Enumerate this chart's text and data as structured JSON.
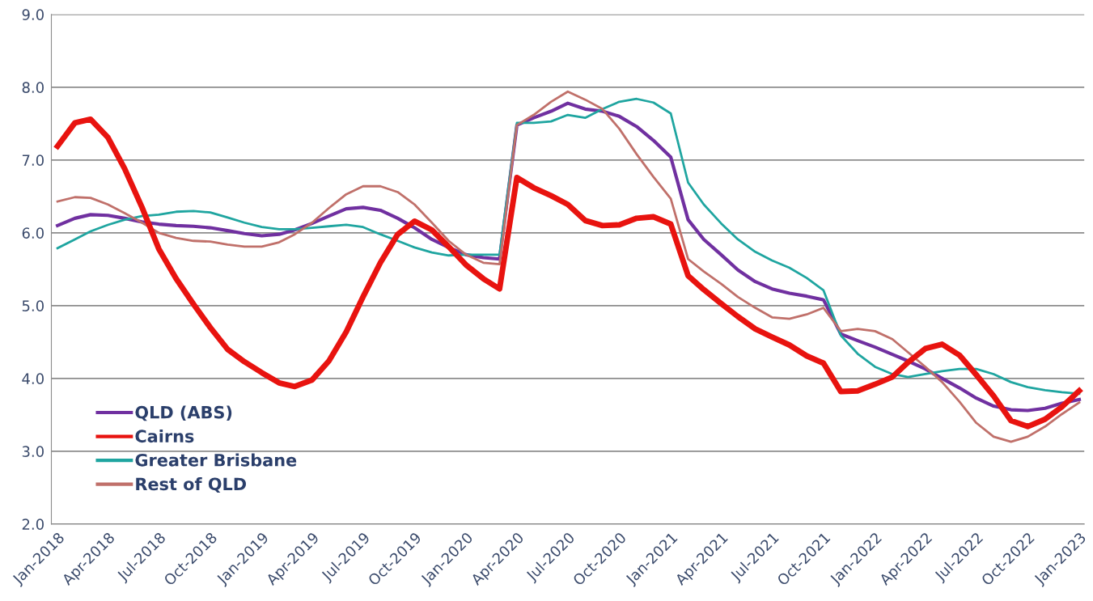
{
  "chart_data": {
    "type": "line",
    "x": [
      "2018-01",
      "2018-02",
      "2018-03",
      "2018-04",
      "2018-05",
      "2018-06",
      "2018-07",
      "2018-08",
      "2018-09",
      "2018-10",
      "2018-11",
      "2018-12",
      "2019-01",
      "2019-02",
      "2019-03",
      "2019-04",
      "2019-05",
      "2019-06",
      "2019-07",
      "2019-08",
      "2019-09",
      "2019-10",
      "2019-11",
      "2019-12",
      "2020-01",
      "2020-02",
      "2020-03",
      "2020-04",
      "2020-05",
      "2020-06",
      "2020-07",
      "2020-08",
      "2020-09",
      "2020-10",
      "2020-11",
      "2020-12",
      "2021-01",
      "2021-02",
      "2021-03",
      "2021-04",
      "2021-05",
      "2021-06",
      "2021-07",
      "2021-08",
      "2021-09",
      "2021-10",
      "2021-11",
      "2021-12",
      "2022-01",
      "2022-02",
      "2022-03",
      "2022-04",
      "2022-05",
      "2022-06",
      "2022-07",
      "2022-08",
      "2022-09",
      "2022-10",
      "2022-11",
      "2022-12",
      "2023-01"
    ],
    "series": [
      {
        "name": "QLD (ABS)",
        "color": "#7030a0",
        "values": [
          6.1,
          6.2,
          6.25,
          6.24,
          6.2,
          6.15,
          6.12,
          6.1,
          6.09,
          6.07,
          6.03,
          5.99,
          5.96,
          5.98,
          6.04,
          6.13,
          6.23,
          6.33,
          6.35,
          6.31,
          6.2,
          6.07,
          5.91,
          5.8,
          5.7,
          5.66,
          5.64,
          7.48,
          7.58,
          7.67,
          7.78,
          7.7,
          7.67,
          7.6,
          7.46,
          7.27,
          7.04,
          6.18,
          5.91,
          5.7,
          5.49,
          5.33,
          5.23,
          5.17,
          5.13,
          5.08,
          4.61,
          4.52,
          4.43,
          4.33,
          4.24,
          4.13,
          4.0,
          3.87,
          3.73,
          3.62,
          3.57,
          3.56,
          3.59,
          3.66,
          3.71
        ]
      },
      {
        "name": "Cairns",
        "color": "#e8130f",
        "values": [
          7.19,
          7.51,
          7.56,
          7.31,
          6.88,
          6.35,
          5.78,
          5.37,
          5.02,
          4.7,
          4.4,
          4.23,
          4.08,
          3.94,
          3.89,
          3.98,
          4.24,
          4.64,
          5.12,
          5.59,
          5.98,
          6.16,
          6.04,
          5.81,
          5.56,
          5.37,
          5.23,
          6.76,
          6.62,
          6.51,
          6.39,
          6.17,
          6.1,
          6.11,
          6.2,
          6.22,
          6.12,
          5.41,
          5.22,
          5.03,
          4.85,
          4.68,
          4.57,
          4.46,
          4.31,
          4.21,
          3.82,
          3.83,
          3.92,
          4.02,
          4.22,
          4.41,
          4.47,
          4.32,
          4.05,
          3.76,
          3.42,
          3.34,
          3.44,
          3.61,
          3.83
        ]
      },
      {
        "name": "Greater Brisbane",
        "color": "#1fa5a0",
        "values": [
          5.79,
          5.91,
          6.02,
          6.11,
          6.18,
          6.23,
          6.25,
          6.29,
          6.3,
          6.28,
          6.21,
          6.14,
          6.08,
          6.05,
          6.05,
          6.07,
          6.09,
          6.11,
          6.08,
          5.98,
          5.89,
          5.8,
          5.73,
          5.69,
          5.7,
          5.7,
          5.7,
          7.51,
          7.51,
          7.53,
          7.62,
          7.58,
          7.7,
          7.8,
          7.84,
          7.79,
          7.64,
          6.69,
          6.39,
          6.13,
          5.91,
          5.74,
          5.62,
          5.52,
          5.38,
          5.21,
          4.59,
          4.34,
          4.16,
          4.06,
          4.02,
          4.06,
          4.1,
          4.13,
          4.13,
          4.06,
          3.95,
          3.88,
          3.84,
          3.81,
          3.79
        ]
      },
      {
        "name": "Rest of QLD",
        "color": "#c0706a",
        "values": [
          6.43,
          6.49,
          6.48,
          6.39,
          6.27,
          6.14,
          6.0,
          5.93,
          5.89,
          5.88,
          5.84,
          5.81,
          5.81,
          5.87,
          5.98,
          6.14,
          6.34,
          6.53,
          6.64,
          6.64,
          6.56,
          6.39,
          6.14,
          5.89,
          5.7,
          5.59,
          5.57,
          7.48,
          7.62,
          7.8,
          7.94,
          7.83,
          7.7,
          7.43,
          7.08,
          6.77,
          6.47,
          5.64,
          5.47,
          5.3,
          5.12,
          4.97,
          4.84,
          4.82,
          4.88,
          4.97,
          4.65,
          4.68,
          4.65,
          4.54,
          4.36,
          4.16,
          3.95,
          3.68,
          3.39,
          3.2,
          3.13,
          3.2,
          3.34,
          3.51,
          3.67
        ]
      }
    ],
    "xlim": [
      "2017-12-21",
      "2023-01-10"
    ],
    "xticks": [
      {
        "value": "2018-01",
        "label": "Jan-2018"
      },
      {
        "value": "2018-04",
        "label": "Apr-2018"
      },
      {
        "value": "2018-07",
        "label": "Jul-2018"
      },
      {
        "value": "2018-10",
        "label": "Oct-2018"
      },
      {
        "value": "2019-01",
        "label": "Jan-2019"
      },
      {
        "value": "2019-04",
        "label": "Apr-2019"
      },
      {
        "value": "2019-07",
        "label": "Jul-2019"
      },
      {
        "value": "2019-10",
        "label": "Oct-2019"
      },
      {
        "value": "2020-01",
        "label": "Jan-2020"
      },
      {
        "value": "2020-04",
        "label": "Apr-2020"
      },
      {
        "value": "2020-07",
        "label": "Jul-2020"
      },
      {
        "value": "2020-10",
        "label": "Oct-2020"
      },
      {
        "value": "2021-01",
        "label": "Jan-2021"
      },
      {
        "value": "2021-04",
        "label": "Apr-2021"
      },
      {
        "value": "2021-07",
        "label": "Jul-2021"
      },
      {
        "value": "2021-10",
        "label": "Oct-2021"
      },
      {
        "value": "2022-01",
        "label": "Jan-2022"
      },
      {
        "value": "2022-04",
        "label": "Apr-2022"
      },
      {
        "value": "2022-07",
        "label": "Jul-2022"
      },
      {
        "value": "2022-10",
        "label": "Oct-2022"
      },
      {
        "value": "2023-01",
        "label": "Jan-2023"
      }
    ],
    "ylim": [
      2.0,
      9.0
    ],
    "yticks": [
      {
        "value": 2,
        "label": "2.0"
      },
      {
        "value": 3,
        "label": "3.0"
      },
      {
        "value": 4,
        "label": "4.0"
      },
      {
        "value": 5,
        "label": "5.0"
      },
      {
        "value": 6,
        "label": "6.0"
      },
      {
        "value": 7,
        "label": "7.0"
      },
      {
        "value": 8,
        "label": "8.0"
      },
      {
        "value": 9,
        "label": "9.0"
      }
    ],
    "grid": "y",
    "legend": "bottom left",
    "marker": "none",
    "line_style": "solid"
  }
}
